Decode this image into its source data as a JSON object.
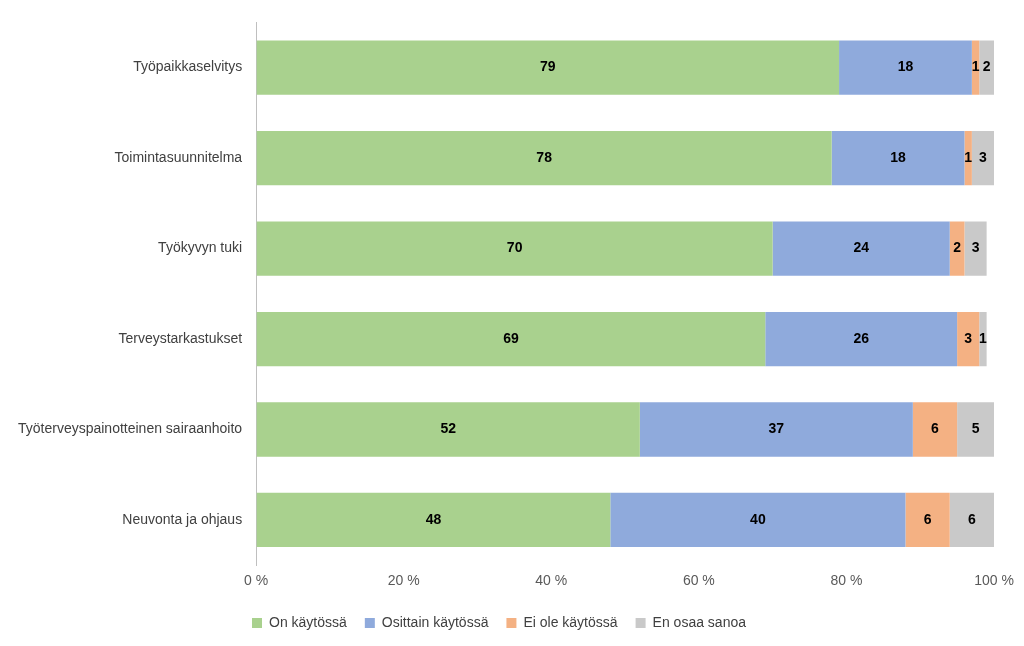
{
  "chart_data": {
    "type": "bar",
    "orientation": "horizontal",
    "stacked": true,
    "data_labels": true,
    "grid": false,
    "legend": "bottom",
    "categories": [
      "Työpaikkaselvitys",
      "Toimintasuunnitelma",
      "Työkyvyn tuki",
      "Terveystarkastukset",
      "Työterveyspainotteinen sairaanhoito",
      "Neuvonta ja ohjaus"
    ],
    "series": [
      {
        "name": "On käytössä",
        "color": "#a9d18e",
        "values": [
          79,
          78,
          70,
          69,
          52,
          48
        ]
      },
      {
        "name": "Osittain käytössä",
        "color": "#8faadc",
        "values": [
          18,
          18,
          24,
          26,
          37,
          40
        ]
      },
      {
        "name": "Ei ole käytössä",
        "color": "#f4b183",
        "values": [
          1,
          1,
          2,
          3,
          6,
          6
        ]
      },
      {
        "name": "En osaa sanoa",
        "color": "#c9c9c9",
        "values": [
          2,
          3,
          3,
          1,
          5,
          6
        ]
      }
    ],
    "xlim": [
      0,
      100
    ],
    "xticks": [
      {
        "value": 0,
        "label": "0 %"
      },
      {
        "value": 20,
        "label": "20 %"
      },
      {
        "value": 40,
        "label": "40 %"
      },
      {
        "value": 60,
        "label": "60 %"
      },
      {
        "value": 80,
        "label": "80 %"
      },
      {
        "value": 100,
        "label": "100 %"
      }
    ]
  }
}
